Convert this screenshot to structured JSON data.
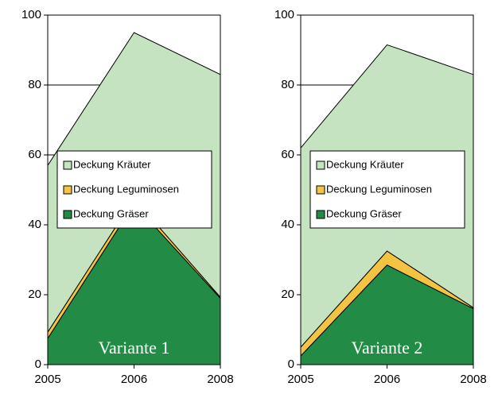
{
  "chart_data": [
    {
      "type": "area",
      "stacked": true,
      "categories": [
        "2005",
        "2006",
        "2008"
      ],
      "series": [
        {
          "name": "Deckung Gräser",
          "color": "#228b45",
          "values": [
            7.5,
            46,
            19
          ]
        },
        {
          "name": "Deckung Leguminosen",
          "color": "#f5c342",
          "values": [
            1.8,
            1.5,
            0.3
          ]
        },
        {
          "name": "Deckung Kräuter",
          "color": "#c5e3c0",
          "values": [
            47.7,
            47.5,
            63.7
          ]
        }
      ],
      "ylim": [
        0,
        100
      ],
      "yticks": [
        0,
        20,
        40,
        60,
        80,
        100
      ],
      "grid": true,
      "annotation": "Variante 1"
    },
    {
      "type": "area",
      "stacked": true,
      "categories": [
        "2005",
        "2006",
        "2008"
      ],
      "series": [
        {
          "name": "Deckung Gräser",
          "color": "#228b45",
          "values": [
            2.5,
            28.5,
            16
          ]
        },
        {
          "name": "Deckung Leguminosen",
          "color": "#f5c342",
          "values": [
            2.5,
            4,
            0.3
          ]
        },
        {
          "name": "Deckung Kräuter",
          "color": "#c5e3c0",
          "values": [
            57,
            59,
            66.7
          ]
        }
      ],
      "ylim": [
        0,
        100
      ],
      "yticks": [
        0,
        20,
        40,
        60,
        80,
        100
      ],
      "grid": true,
      "annotation": "Variante 2"
    }
  ]
}
